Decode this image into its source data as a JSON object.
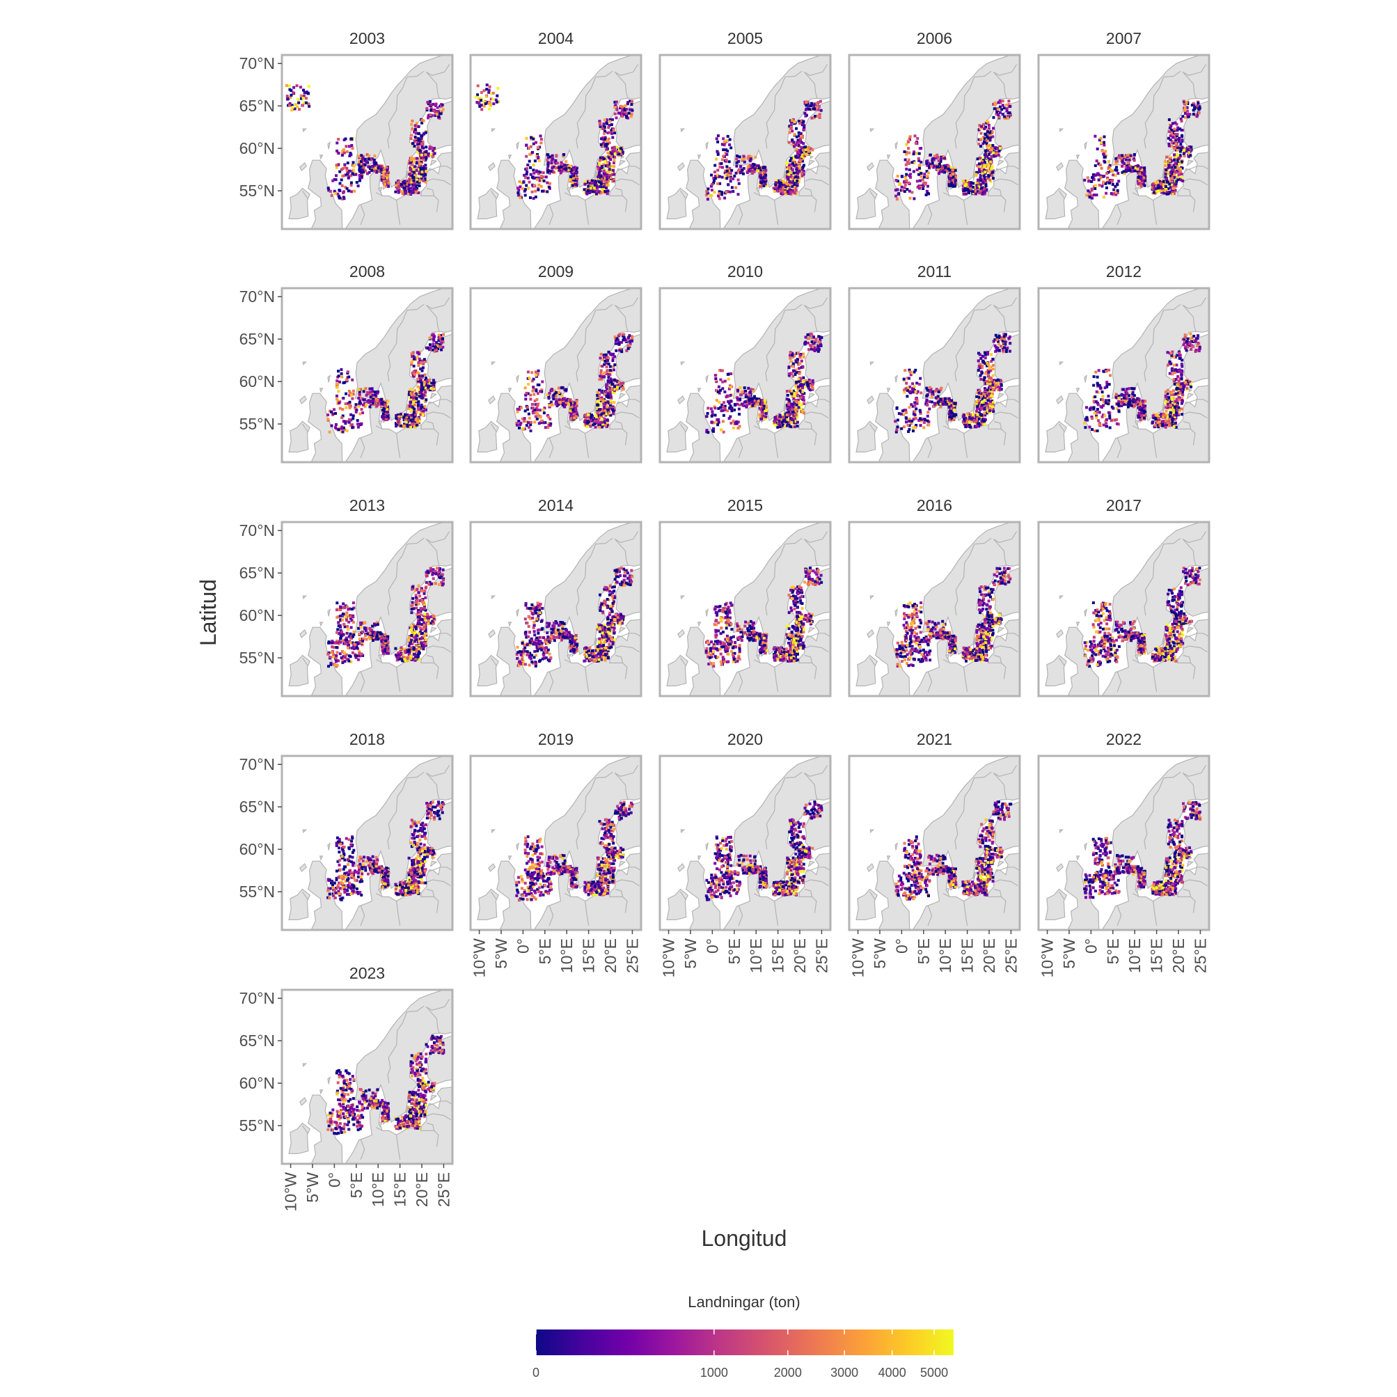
{
  "map": {
    "x_axis_title": "Longitud",
    "y_axis_title": "Latitud",
    "lon_range": [
      -12,
      27
    ],
    "lat_range": [
      50.5,
      71
    ],
    "lon_ticks": [
      "10°W",
      "5°W",
      "0°",
      "5°E",
      "10°E",
      "15°E",
      "20°E",
      "25°E"
    ],
    "lat_ticks": [
      "55°N",
      "60°N",
      "65°N",
      "70°N"
    ],
    "colors": {
      "land": "#e1e1e1",
      "borders": "#b3b3b3",
      "panel_border": "#b3b3b3"
    },
    "panels": [
      {
        "label": "2003",
        "year": 2003
      },
      {
        "label": "2004",
        "year": 2004
      },
      {
        "label": "2005",
        "year": 2005
      },
      {
        "label": "2006",
        "year": 2006
      },
      {
        "label": "2007",
        "year": 2007
      },
      {
        "label": "2008",
        "year": 2008
      },
      {
        "label": "2009",
        "year": 2009
      },
      {
        "label": "2010",
        "year": 2010
      },
      {
        "label": "2011",
        "year": 2011
      },
      {
        "label": "2012",
        "year": 2012
      },
      {
        "label": "2013",
        "year": 2013
      },
      {
        "label": "2014",
        "year": 2014
      },
      {
        "label": "2015",
        "year": 2015
      },
      {
        "label": "2016",
        "year": 2016
      },
      {
        "label": "2017",
        "year": 2017
      },
      {
        "label": "2018",
        "year": 2018
      },
      {
        "label": "2019",
        "year": 2019
      },
      {
        "label": "2020",
        "year": 2020
      },
      {
        "label": "2021",
        "year": 2021
      },
      {
        "label": "2022",
        "year": 2022
      },
      {
        "label": "2023",
        "year": 2023
      }
    ]
  },
  "legend": {
    "title": "Landningar (ton)",
    "tick_labels": [
      "0",
      "1000",
      "2000",
      "3000",
      "4000",
      "5000"
    ],
    "tick_values": [
      0,
      1000,
      2000,
      3000,
      4000,
      5000
    ],
    "max_value": 5500,
    "scale": "sqrt",
    "palette": [
      "#0d0887",
      "#46039f",
      "#7201a8",
      "#9c179e",
      "#bd3786",
      "#d8576b",
      "#ed7953",
      "#fb9f3a",
      "#fdca26",
      "#f0f921"
    ]
  }
}
